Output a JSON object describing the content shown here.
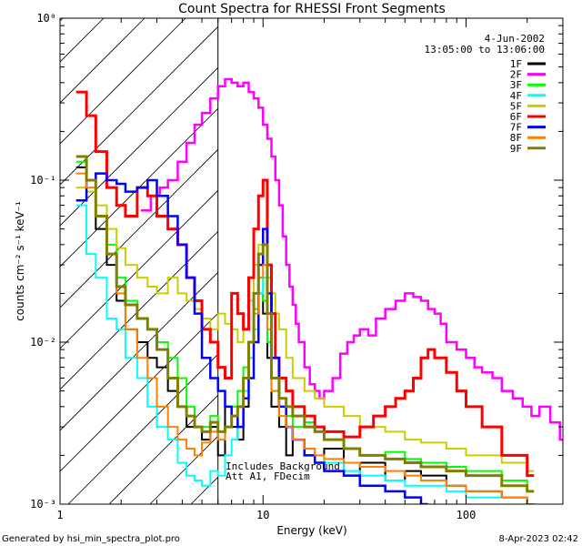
{
  "chart_data": {
    "type": "line",
    "title": "Count Spectra for RHESSI Front Segments",
    "xlabel": "Energy (keV)",
    "ylabel": "counts cm⁻² s⁻¹ keV⁻¹",
    "xscale": "log",
    "yscale": "log",
    "xlim": [
      1,
      300
    ],
    "ylim": [
      0.001,
      1
    ],
    "x_tick_labels": [
      {
        "value": 1,
        "label": "1"
      },
      {
        "value": 10,
        "label": "10"
      },
      {
        "value": 100,
        "label": "100"
      }
    ],
    "y_tick_labels": [
      {
        "value": 0.001,
        "label": "10⁻³"
      },
      {
        "value": 0.01,
        "label": "10⁻²"
      },
      {
        "value": 0.1,
        "label": "10⁻¹"
      },
      {
        "value": 1,
        "label": "10⁰"
      }
    ],
    "date": "4-Jun-2002",
    "time_range": "13:05:00 to 13:06:00",
    "annotation_lines": [
      "Includes Background",
      "Att A1, FDecim"
    ],
    "shaded_region": {
      "from": 1,
      "to": 6
    },
    "legend_position": "top-right",
    "series": [
      {
        "name": "1F",
        "color": "#000000",
        "width": 2,
        "x": [
          1.2,
          1.35,
          1.5,
          1.7,
          1.9,
          2.1,
          2.4,
          2.7,
          3.0,
          3.4,
          3.8,
          4.2,
          4.6,
          5.0,
          5.5,
          6.0,
          6.5,
          7.0,
          7.5,
          8.0,
          8.5,
          9.0,
          9.5,
          10.0,
          10.5,
          11.0,
          12,
          13,
          14,
          16,
          18,
          20,
          25,
          30,
          40,
          50,
          60,
          80,
          100,
          150,
          200
        ],
        "y": [
          0.12,
          0.1,
          0.05,
          0.03,
          0.018,
          0.012,
          0.01,
          0.008,
          0.007,
          0.005,
          0.004,
          0.003,
          0.003,
          0.0025,
          0.003,
          0.002,
          0.004,
          0.003,
          0.0025,
          0.004,
          0.006,
          0.01,
          0.02,
          0.015,
          0.008,
          0.004,
          0.003,
          0.002,
          0.0025,
          0.002,
          0.0018,
          0.0022,
          0.0015,
          0.0018,
          0.0014,
          0.0016,
          0.0015,
          0.0013,
          0.0012,
          0.0011,
          0.001
        ]
      },
      {
        "name": "2F",
        "color": "#ff00ff",
        "width": 2.5,
        "x": [
          2.5,
          2.8,
          3.1,
          3.4,
          3.8,
          4.2,
          4.6,
          5.0,
          5.5,
          6.0,
          6.5,
          7.0,
          7.5,
          8.0,
          8.5,
          9.0,
          9.5,
          10.0,
          10.5,
          11.0,
          11.5,
          12.0,
          12.5,
          13.0,
          13.5,
          14.0,
          14.5,
          15.0,
          16,
          17,
          18,
          19,
          20,
          22,
          24,
          26,
          28,
          30,
          33,
          36,
          40,
          45,
          50,
          55,
          60,
          65,
          70,
          75,
          80,
          90,
          100,
          110,
          120,
          135,
          150,
          170,
          190,
          210,
          230,
          260,
          290
        ],
        "y": [
          0.065,
          0.08,
          0.09,
          0.1,
          0.13,
          0.17,
          0.22,
          0.26,
          0.32,
          0.38,
          0.42,
          0.4,
          0.38,
          0.4,
          0.35,
          0.32,
          0.28,
          0.22,
          0.18,
          0.14,
          0.1,
          0.07,
          0.045,
          0.03,
          0.022,
          0.017,
          0.013,
          0.01,
          0.007,
          0.0055,
          0.005,
          0.0045,
          0.005,
          0.006,
          0.0085,
          0.01,
          0.011,
          0.012,
          0.011,
          0.014,
          0.016,
          0.018,
          0.02,
          0.019,
          0.018,
          0.016,
          0.015,
          0.013,
          0.01,
          0.009,
          0.008,
          0.007,
          0.0065,
          0.006,
          0.005,
          0.0045,
          0.004,
          0.0035,
          0.004,
          0.0032,
          0.0025
        ]
      },
      {
        "name": "3F",
        "color": "#00ff00",
        "width": 2,
        "x": [
          1.2,
          1.35,
          1.5,
          1.7,
          1.9,
          2.1,
          2.4,
          2.7,
          3.0,
          3.4,
          3.8,
          4.2,
          4.6,
          5.0,
          5.5,
          6.0,
          6.5,
          7.0,
          7.5,
          8.0,
          8.5,
          9.0,
          9.5,
          10.0,
          10.5,
          11.0,
          12,
          13,
          14,
          16,
          18,
          20,
          25,
          30,
          40,
          50,
          60,
          80,
          100,
          150,
          200
        ],
        "y": [
          0.13,
          0.1,
          0.06,
          0.04,
          0.025,
          0.018,
          0.014,
          0.012,
          0.01,
          0.008,
          0.006,
          0.004,
          0.003,
          0.003,
          0.0035,
          0.0028,
          0.003,
          0.004,
          0.005,
          0.007,
          0.01,
          0.016,
          0.025,
          0.018,
          0.01,
          0.005,
          0.004,
          0.0035,
          0.003,
          0.0032,
          0.0028,
          0.0025,
          0.0022,
          0.002,
          0.0021,
          0.0019,
          0.0018,
          0.0017,
          0.0016,
          0.0014,
          0.0012
        ]
      },
      {
        "name": "4F",
        "color": "#00ffff",
        "width": 2,
        "x": [
          1.2,
          1.35,
          1.5,
          1.7,
          1.9,
          2.1,
          2.4,
          2.7,
          3.0,
          3.4,
          3.8,
          4.2,
          4.6,
          5.0,
          5.5,
          6.0,
          6.5,
          7.0,
          7.5,
          8.0,
          8.5,
          9.0,
          9.5,
          10.0,
          10.5,
          11.0,
          12,
          13,
          14,
          16,
          18,
          20,
          25,
          30,
          40,
          50,
          60,
          80,
          100,
          150,
          200
        ],
        "y": [
          0.07,
          0.035,
          0.025,
          0.014,
          0.012,
          0.008,
          0.006,
          0.004,
          0.003,
          0.0025,
          0.0018,
          0.0015,
          0.0014,
          0.0013,
          0.0016,
          0.0015,
          0.002,
          0.0025,
          0.003,
          0.005,
          0.008,
          0.012,
          0.02,
          0.025,
          0.012,
          0.006,
          0.004,
          0.003,
          0.0025,
          0.0022,
          0.002,
          0.0018,
          0.0016,
          0.0015,
          0.0014,
          0.0013,
          0.0013,
          0.0012,
          0.0011,
          0.0011,
          0.001
        ]
      },
      {
        "name": "5F",
        "color": "#cccc00",
        "width": 2,
        "x": [
          1.2,
          1.35,
          1.5,
          1.7,
          1.9,
          2.1,
          2.4,
          2.7,
          3.0,
          3.4,
          3.8,
          4.2,
          4.6,
          5.0,
          5.5,
          6.0,
          6.5,
          7.0,
          7.5,
          8.0,
          8.5,
          9.0,
          9.5,
          10.0,
          10.5,
          11.0,
          11.5,
          12,
          13,
          14,
          16,
          18,
          20,
          25,
          30,
          40,
          50,
          60,
          80,
          100,
          150,
          200
        ],
        "y": [
          0.09,
          0.085,
          0.07,
          0.05,
          0.038,
          0.03,
          0.025,
          0.022,
          0.02,
          0.025,
          0.02,
          0.018,
          0.016,
          0.014,
          0.012,
          0.015,
          0.013,
          0.012,
          0.01,
          0.012,
          0.018,
          0.03,
          0.04,
          0.03,
          0.025,
          0.02,
          0.015,
          0.012,
          0.008,
          0.006,
          0.005,
          0.0045,
          0.004,
          0.0035,
          0.003,
          0.0028,
          0.0025,
          0.0024,
          0.0022,
          0.002,
          0.0018,
          0.0016
        ]
      },
      {
        "name": "6F",
        "color": "#ff0000",
        "width": 3,
        "x": [
          1.2,
          1.35,
          1.5,
          1.7,
          1.9,
          2.1,
          2.4,
          2.7,
          3.0,
          3.4,
          3.8,
          4.2,
          4.6,
          5.0,
          5.5,
          6.0,
          6.5,
          7.0,
          7.5,
          8.0,
          8.5,
          9.0,
          9.5,
          10.0,
          10.5,
          11.0,
          11.5,
          12,
          13,
          14,
          16,
          18,
          20,
          25,
          30,
          35,
          40,
          45,
          50,
          55,
          60,
          65,
          70,
          80,
          90,
          100,
          120,
          150,
          200
        ],
        "y": [
          0.35,
          0.25,
          0.15,
          0.09,
          0.07,
          0.06,
          0.09,
          0.08,
          0.06,
          0.05,
          0.04,
          0.025,
          0.018,
          0.012,
          0.01,
          0.007,
          0.006,
          0.02,
          0.015,
          0.012,
          0.025,
          0.05,
          0.08,
          0.1,
          0.03,
          0.015,
          0.008,
          0.006,
          0.005,
          0.004,
          0.0035,
          0.003,
          0.0028,
          0.0026,
          0.003,
          0.0035,
          0.004,
          0.0045,
          0.005,
          0.006,
          0.008,
          0.009,
          0.008,
          0.0065,
          0.005,
          0.004,
          0.003,
          0.002,
          0.0015
        ]
      },
      {
        "name": "7F",
        "color": "#0000ff",
        "width": 2.5,
        "x": [
          1.2,
          1.35,
          1.5,
          1.7,
          1.9,
          2.1,
          2.4,
          2.7,
          3.0,
          3.4,
          3.8,
          4.2,
          4.6,
          5.0,
          5.5,
          6.0,
          6.5,
          7.0,
          7.5,
          8.0,
          8.5,
          9.0,
          9.5,
          10.0,
          10.5,
          11.0,
          12,
          13,
          14,
          16,
          18,
          20,
          25,
          30,
          40,
          50,
          60
        ],
        "y": [
          0.075,
          0.1,
          0.11,
          0.1,
          0.095,
          0.085,
          0.09,
          0.1,
          0.08,
          0.06,
          0.04,
          0.025,
          0.015,
          0.008,
          0.006,
          0.005,
          0.004,
          0.0035,
          0.003,
          0.0045,
          0.006,
          0.01,
          0.03,
          0.05,
          0.02,
          0.008,
          0.004,
          0.003,
          0.0025,
          0.002,
          0.0018,
          0.0016,
          0.0015,
          0.0013,
          0.0012,
          0.0011,
          0.001
        ]
      },
      {
        "name": "8F",
        "color": "#ff8000",
        "width": 2,
        "x": [
          1.2,
          1.35,
          1.5,
          1.7,
          1.9,
          2.1,
          2.4,
          2.7,
          3.0,
          3.4,
          3.8,
          4.2,
          4.6,
          5.0,
          5.5,
          6.0,
          6.5,
          7.0,
          7.5,
          8.0,
          8.5,
          9.0,
          9.5,
          10.0,
          10.5,
          11.0,
          12,
          13,
          14,
          16,
          18,
          20,
          25,
          30,
          40,
          50,
          60,
          80,
          100,
          150,
          200
        ],
        "y": [
          0.11,
          0.09,
          0.06,
          0.035,
          0.02,
          0.012,
          0.008,
          0.006,
          0.004,
          0.003,
          0.0025,
          0.0022,
          0.002,
          0.0024,
          0.0028,
          0.0025,
          0.003,
          0.0035,
          0.004,
          0.006,
          0.01,
          0.015,
          0.025,
          0.03,
          0.012,
          0.005,
          0.0035,
          0.003,
          0.0025,
          0.0022,
          0.002,
          0.0019,
          0.0018,
          0.0017,
          0.0016,
          0.0015,
          0.0014,
          0.0013,
          0.0012,
          0.0011,
          0.001
        ]
      },
      {
        "name": "9F",
        "color": "#808000",
        "width": 3,
        "x": [
          1.2,
          1.35,
          1.5,
          1.7,
          1.9,
          2.1,
          2.4,
          2.7,
          3.0,
          3.4,
          3.8,
          4.2,
          4.6,
          5.0,
          5.5,
          6.0,
          6.5,
          7.0,
          7.5,
          8.0,
          8.5,
          9.0,
          9.5,
          10.0,
          10.5,
          11.0,
          12,
          13,
          14,
          16,
          18,
          20,
          25,
          30,
          40,
          50,
          60,
          80,
          100,
          150,
          200
        ],
        "y": [
          0.14,
          0.1,
          0.06,
          0.035,
          0.022,
          0.017,
          0.014,
          0.012,
          0.009,
          0.006,
          0.004,
          0.0035,
          0.003,
          0.0028,
          0.0032,
          0.0028,
          0.003,
          0.0035,
          0.004,
          0.006,
          0.01,
          0.02,
          0.035,
          0.04,
          0.015,
          0.006,
          0.0045,
          0.004,
          0.0035,
          0.003,
          0.0028,
          0.0025,
          0.0022,
          0.002,
          0.0019,
          0.0018,
          0.0017,
          0.0016,
          0.0015,
          0.0013,
          0.0012
        ]
      }
    ]
  },
  "footer": {
    "generated_by": "Generated by hsi_min_spectra_plot.pro",
    "timestamp": "8-Apr-2023 02:42"
  }
}
